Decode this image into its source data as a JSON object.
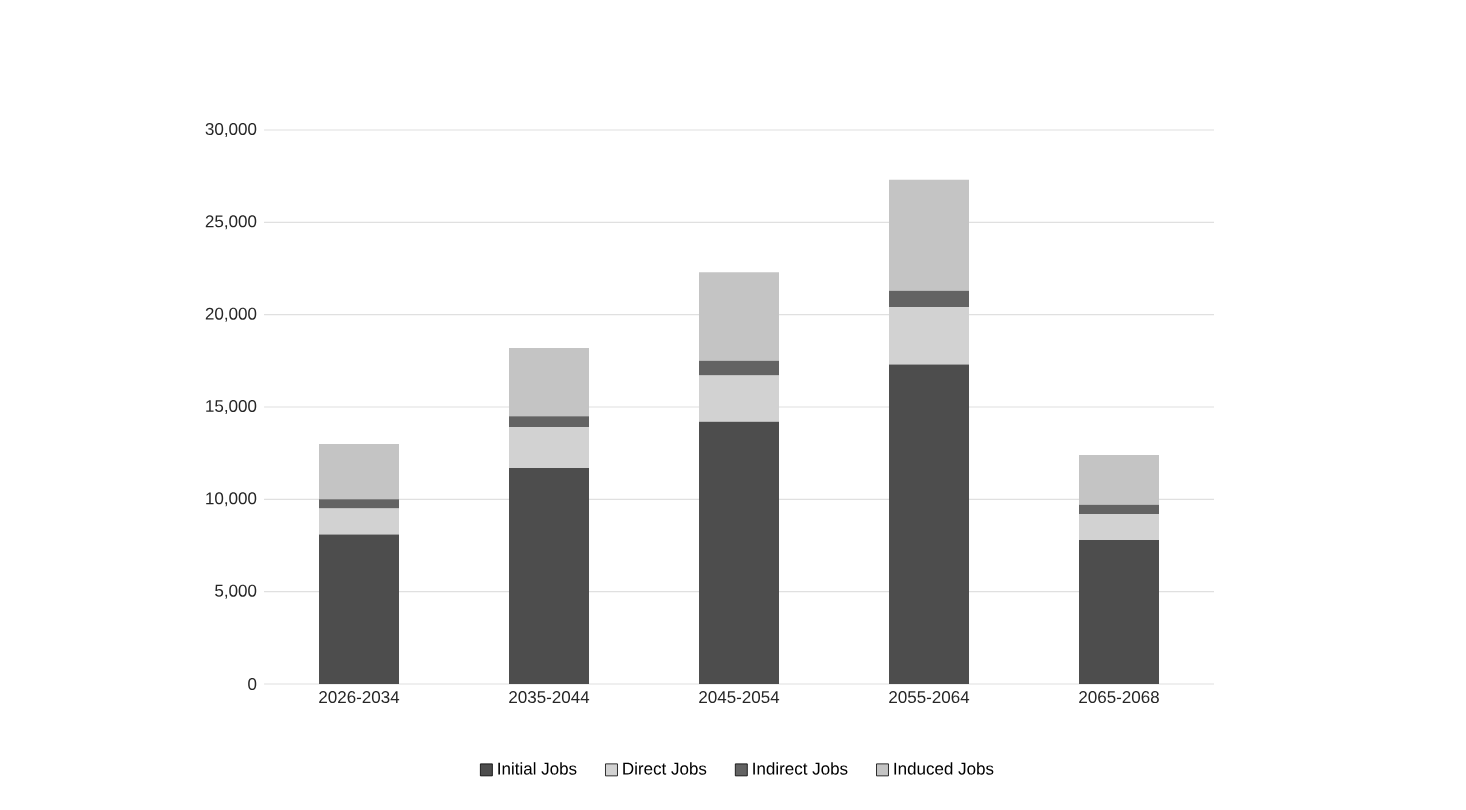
{
  "chart_data": {
    "type": "bar",
    "stacked": true,
    "categories": [
      "2026-2034",
      "2035-2044",
      "2045-2054",
      "2055-2064",
      "2065-2068"
    ],
    "series": [
      {
        "name": "Initial Jobs",
        "color": "#4d4d4d",
        "values": [
          8100,
          11700,
          14200,
          17300,
          7800
        ]
      },
      {
        "name": "Direct Jobs",
        "color": "#d2d2d2",
        "values": [
          1400,
          2200,
          2500,
          3100,
          1400
        ]
      },
      {
        "name": "Indirect Jobs",
        "color": "#636363",
        "values": [
          500,
          600,
          800,
          900,
          500
        ]
      },
      {
        "name": "Induced Jobs",
        "color": "#c4c4c4",
        "values": [
          3000,
          3700,
          4800,
          6000,
          2700
        ]
      }
    ],
    "ylim": [
      0,
      30000
    ],
    "yticks": [
      0,
      {
        "value": 5000,
        "label": "5,000"
      },
      {
        "value": 10000,
        "label": "10,000"
      },
      {
        "value": 15000,
        "label": "15,000"
      },
      {
        "value": 20000,
        "label": "20,000"
      },
      {
        "value": 25000,
        "label": "25,000"
      },
      {
        "value": 30000,
        "label": "30,000"
      }
    ],
    "grid": "y",
    "legend": "bottom"
  }
}
